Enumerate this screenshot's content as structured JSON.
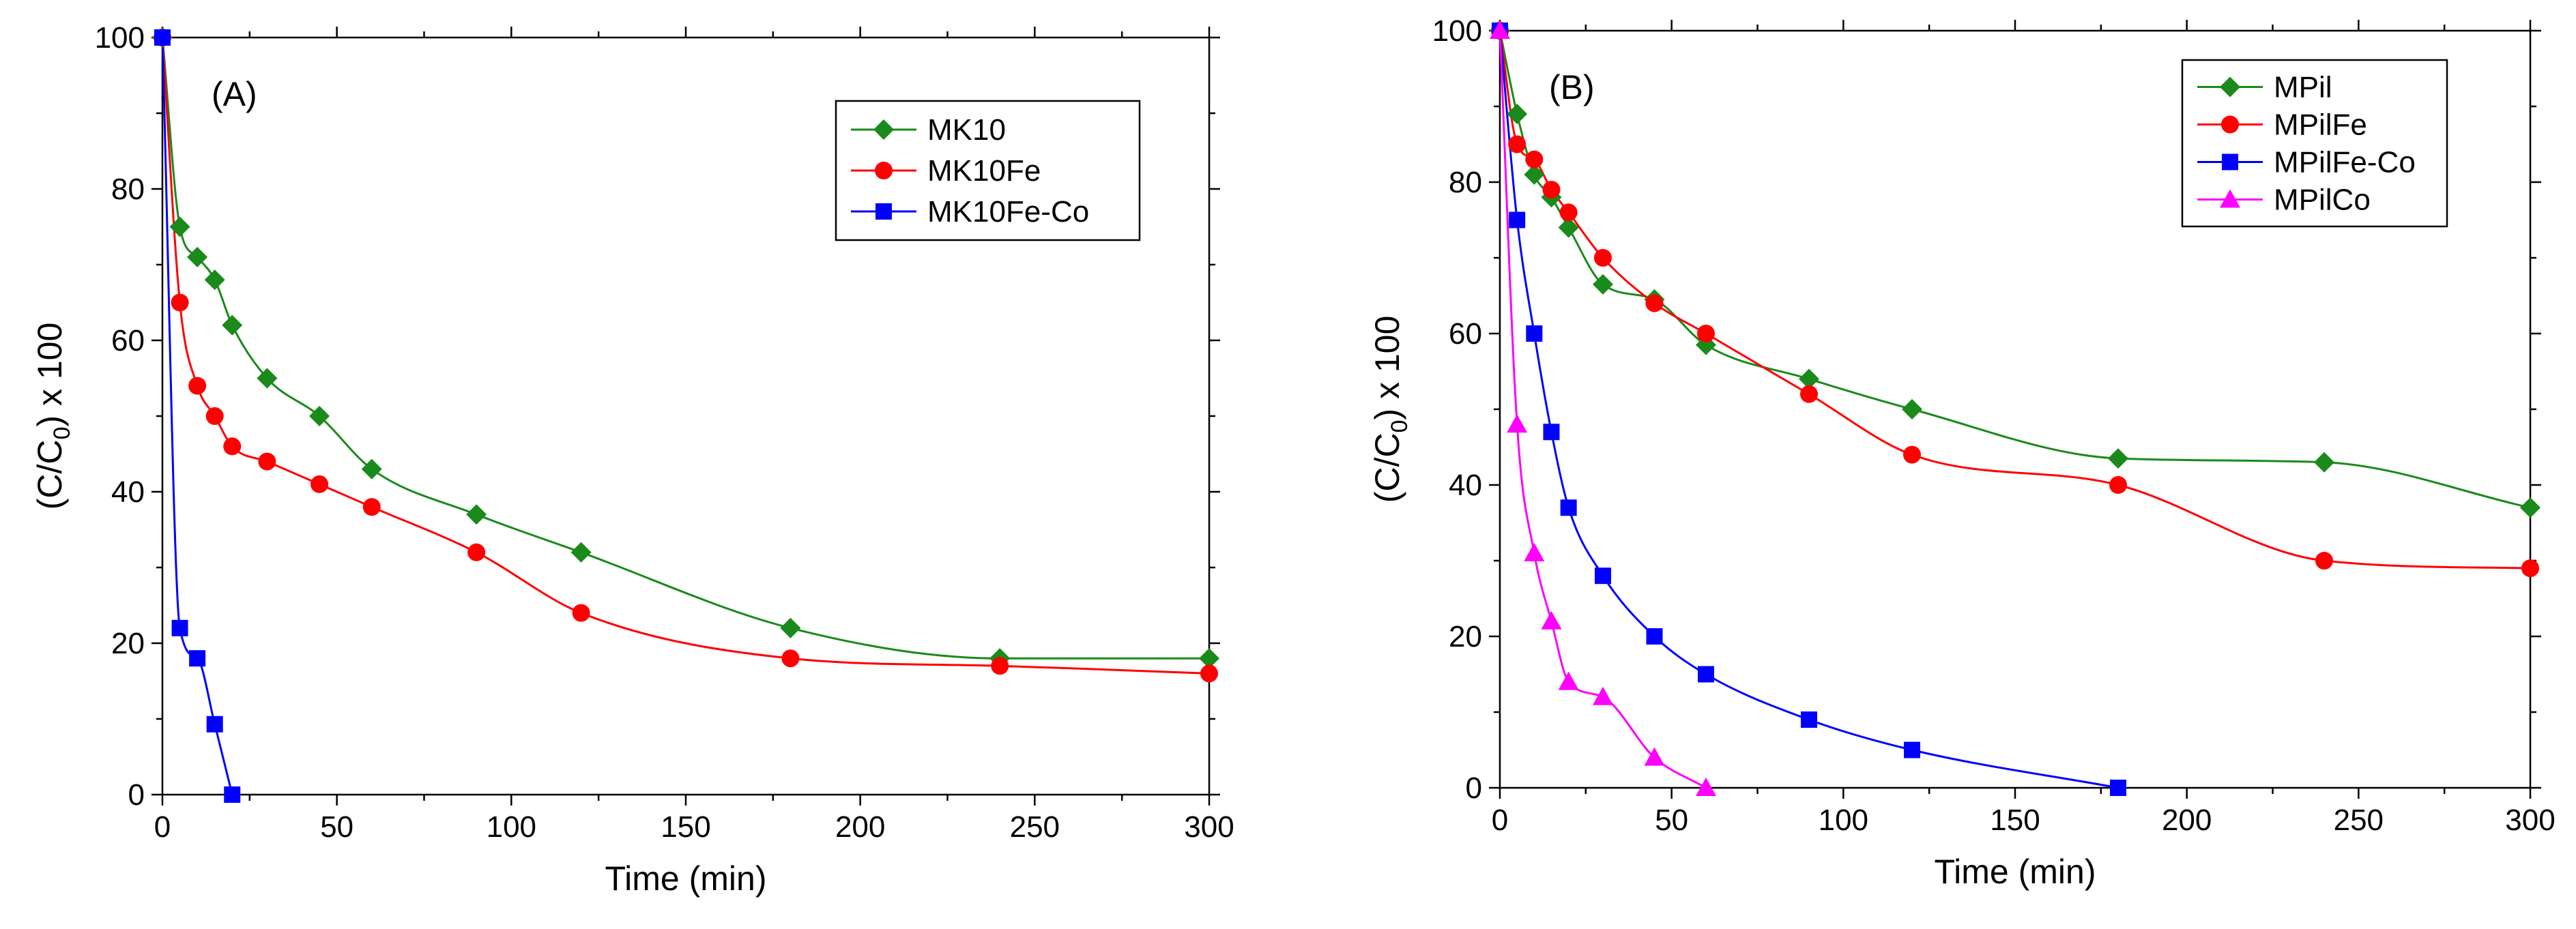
{
  "colors": {
    "green": "#1a8a1a",
    "red": "#ff0000",
    "blue": "#0000ff",
    "magenta": "#ff00ff",
    "axis": "#000000"
  },
  "chart_data": [
    {
      "panel": "A",
      "type": "line",
      "label": "(A)",
      "xlabel": "Time (min)",
      "ylabel_main": "(C/C",
      "ylabel_sub": "0",
      "ylabel_tail": ") x 100",
      "xlim": [
        0,
        300
      ],
      "ylim": [
        0,
        100
      ],
      "xticks": [
        0,
        50,
        100,
        150,
        200,
        250,
        300
      ],
      "xtick_labels": [
        "0",
        "50",
        "100",
        "150",
        "200",
        "250",
        "300"
      ],
      "yticks": [
        0,
        20,
        40,
        60,
        80,
        100
      ],
      "ytick_labels": [
        "0",
        "20",
        "40",
        "60",
        "80",
        "100"
      ],
      "legend_position": "top-right",
      "series": [
        {
          "name": "MK10",
          "marker": "diamond",
          "color": "#1a8a1a",
          "x": [
            0,
            5,
            10,
            15,
            20,
            30,
            45,
            60,
            90,
            120,
            180,
            240,
            300
          ],
          "y": [
            100,
            75,
            71,
            68,
            62,
            55,
            50,
            43,
            37,
            32,
            22,
            18,
            18
          ]
        },
        {
          "name": "MK10Fe",
          "marker": "circle",
          "color": "#ff0000",
          "x": [
            0,
            5,
            10,
            15,
            20,
            30,
            45,
            60,
            90,
            120,
            180,
            240,
            300
          ],
          "y": [
            100,
            65,
            54,
            50,
            46,
            44,
            41,
            38,
            32,
            24,
            18,
            17,
            16
          ]
        },
        {
          "name": "MK10Fe-Co",
          "marker": "square",
          "color": "#0000ff",
          "x": [
            0,
            5,
            10,
            15,
            20
          ],
          "y": [
            100,
            22,
            18,
            9.3,
            0
          ]
        }
      ]
    },
    {
      "panel": "B",
      "type": "line",
      "label": "(B)",
      "xlabel": "Time (min)",
      "ylabel_main": "(C/C",
      "ylabel_sub": "0",
      "ylabel_tail": ") x 100",
      "xlim": [
        0,
        300
      ],
      "ylim": [
        0,
        100
      ],
      "xticks": [
        0,
        50,
        100,
        150,
        200,
        250,
        300
      ],
      "xtick_labels": [
        "0",
        "50",
        "100",
        "150",
        "200",
        "250",
        "300"
      ],
      "yticks": [
        0,
        20,
        40,
        60,
        80,
        100
      ],
      "ytick_labels": [
        "0",
        "20",
        "40",
        "60",
        "80",
        "100"
      ],
      "legend_position": "top-right",
      "series": [
        {
          "name": "MPil",
          "marker": "diamond",
          "color": "#1a8a1a",
          "x": [
            0,
            5,
            10,
            15,
            20,
            30,
            45,
            60,
            90,
            120,
            180,
            240,
            300
          ],
          "y": [
            100,
            89,
            81,
            78,
            74,
            66.5,
            64.5,
            58.5,
            54,
            50,
            43.5,
            43,
            37
          ]
        },
        {
          "name": "MPilFe",
          "marker": "circle",
          "color": "#ff0000",
          "x": [
            0,
            5,
            10,
            15,
            20,
            30,
            45,
            60,
            90,
            120,
            180,
            240,
            300
          ],
          "y": [
            100,
            85,
            83,
            79,
            76,
            70,
            64,
            60,
            52,
            44,
            40,
            30,
            29
          ]
        },
        {
          "name": "MPilFe-Co",
          "marker": "square",
          "color": "#0000ff",
          "x": [
            0,
            5,
            10,
            15,
            20,
            30,
            45,
            60,
            90,
            120,
            180
          ],
          "y": [
            100,
            75,
            60,
            47,
            37,
            28,
            20,
            15,
            9,
            5,
            0
          ]
        },
        {
          "name": "MPilCo",
          "marker": "triangle",
          "color": "#ff00ff",
          "x": [
            0,
            5,
            10,
            15,
            20,
            30,
            45,
            60
          ],
          "y": [
            100,
            48,
            31,
            22,
            14,
            12,
            4,
            0
          ]
        }
      ]
    }
  ]
}
